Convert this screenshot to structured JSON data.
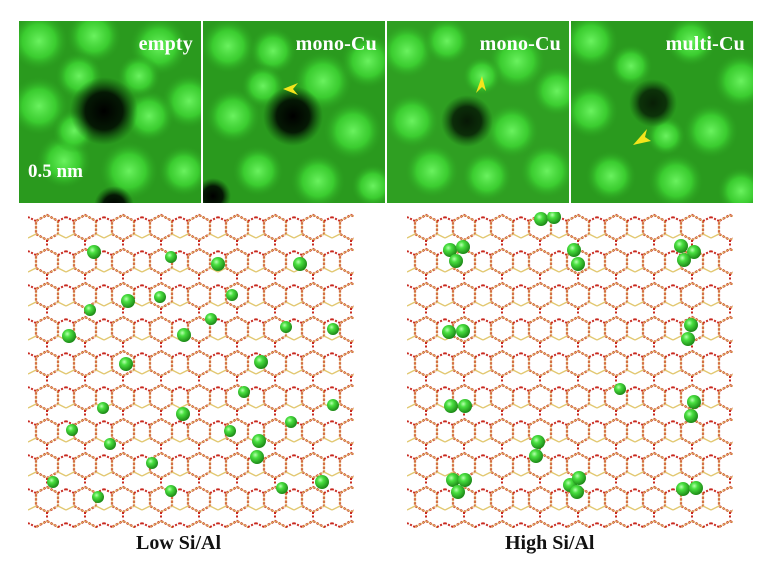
{
  "figure": {
    "tem_panels": [
      {
        "label": "empty",
        "arrow": "none"
      },
      {
        "label": "mono-Cu",
        "arrow": "arrowhead"
      },
      {
        "label": "mono-Cu",
        "arrow": "arrowhead"
      },
      {
        "label": "multi-Cu",
        "arrow": "arrowhead"
      }
    ],
    "scale_bar_label": "0.5 nm",
    "colors": {
      "tem_background": "#2a9a1e",
      "tem_spot": "#41e33a",
      "pore": "#020a02",
      "arrowhead": "#f4e41c",
      "framework_oxygen": "#c8281e",
      "framework_silicon": "#e2c870",
      "cu_atom": "#3fd43a"
    },
    "models": [
      {
        "caption": "Low Si/Al",
        "cu_distribution": "isolated single Cu atoms"
      },
      {
        "caption": "High Si/Al",
        "cu_distribution": "clustered Cu atoms"
      }
    ]
  }
}
